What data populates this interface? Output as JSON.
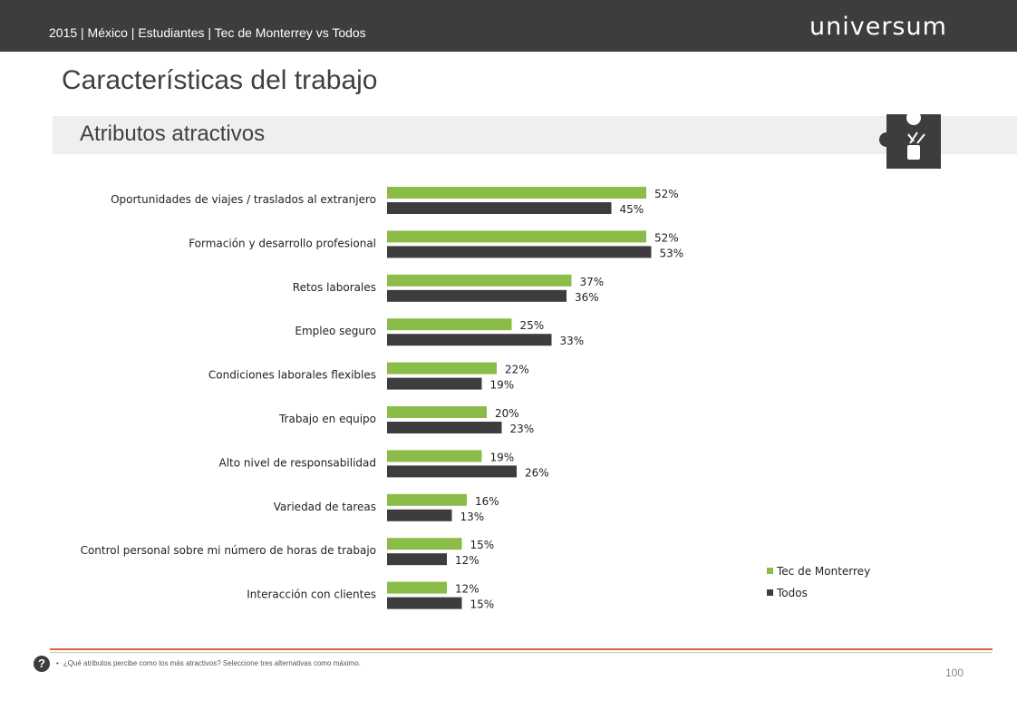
{
  "header": {
    "breadcrumb": "2015 | México | Estudiantes | Tec de Monterrey vs Todos",
    "logo": "universum"
  },
  "page_title": "Características del trabajo",
  "section_title": "Atributos atractivos",
  "icon": "puzzle-piece-icon",
  "colors": {
    "series1": "#8bbc47",
    "series2": "#3d3d3d",
    "accent": "#d9653f",
    "topbar": "#3d3d3d"
  },
  "chart_data": {
    "type": "bar",
    "orientation": "horizontal",
    "categories": [
      "Oportunidades de viajes / traslados al extranjero",
      "Formación y desarrollo profesional",
      "Retos laborales",
      "Empleo seguro",
      "Condiciones laborales flexibles",
      "Trabajo en equipo",
      "Alto nivel de responsabilidad",
      "Variedad de tareas",
      "Control personal sobre mi número de horas de trabajo",
      "Interacción con clientes"
    ],
    "series": [
      {
        "name": "Tec de Monterrey",
        "values": [
          52,
          52,
          37,
          25,
          22,
          20,
          19,
          16,
          15,
          12
        ],
        "labels": [
          "52%",
          "52%",
          "37%",
          "25%",
          "22%",
          "20%",
          "19%",
          "16%",
          "15%",
          "12%"
        ]
      },
      {
        "name": "Todos",
        "values": [
          45,
          53,
          36,
          33,
          19,
          23,
          26,
          13,
          12,
          15
        ],
        "labels": [
          "45%",
          "53%",
          "36%",
          "33%",
          "19%",
          "23%",
          "26%",
          "13%",
          "12%",
          "15%"
        ]
      }
    ],
    "xlim": [
      0,
      100
    ],
    "grid": false,
    "legend": "bottom-right"
  },
  "footer": {
    "help_badge": "?",
    "bullet": "•",
    "question": "¿Qué atributos percibe como los más atractivos? Seleccione tres alternativas como máximo.",
    "page_number": "100"
  }
}
